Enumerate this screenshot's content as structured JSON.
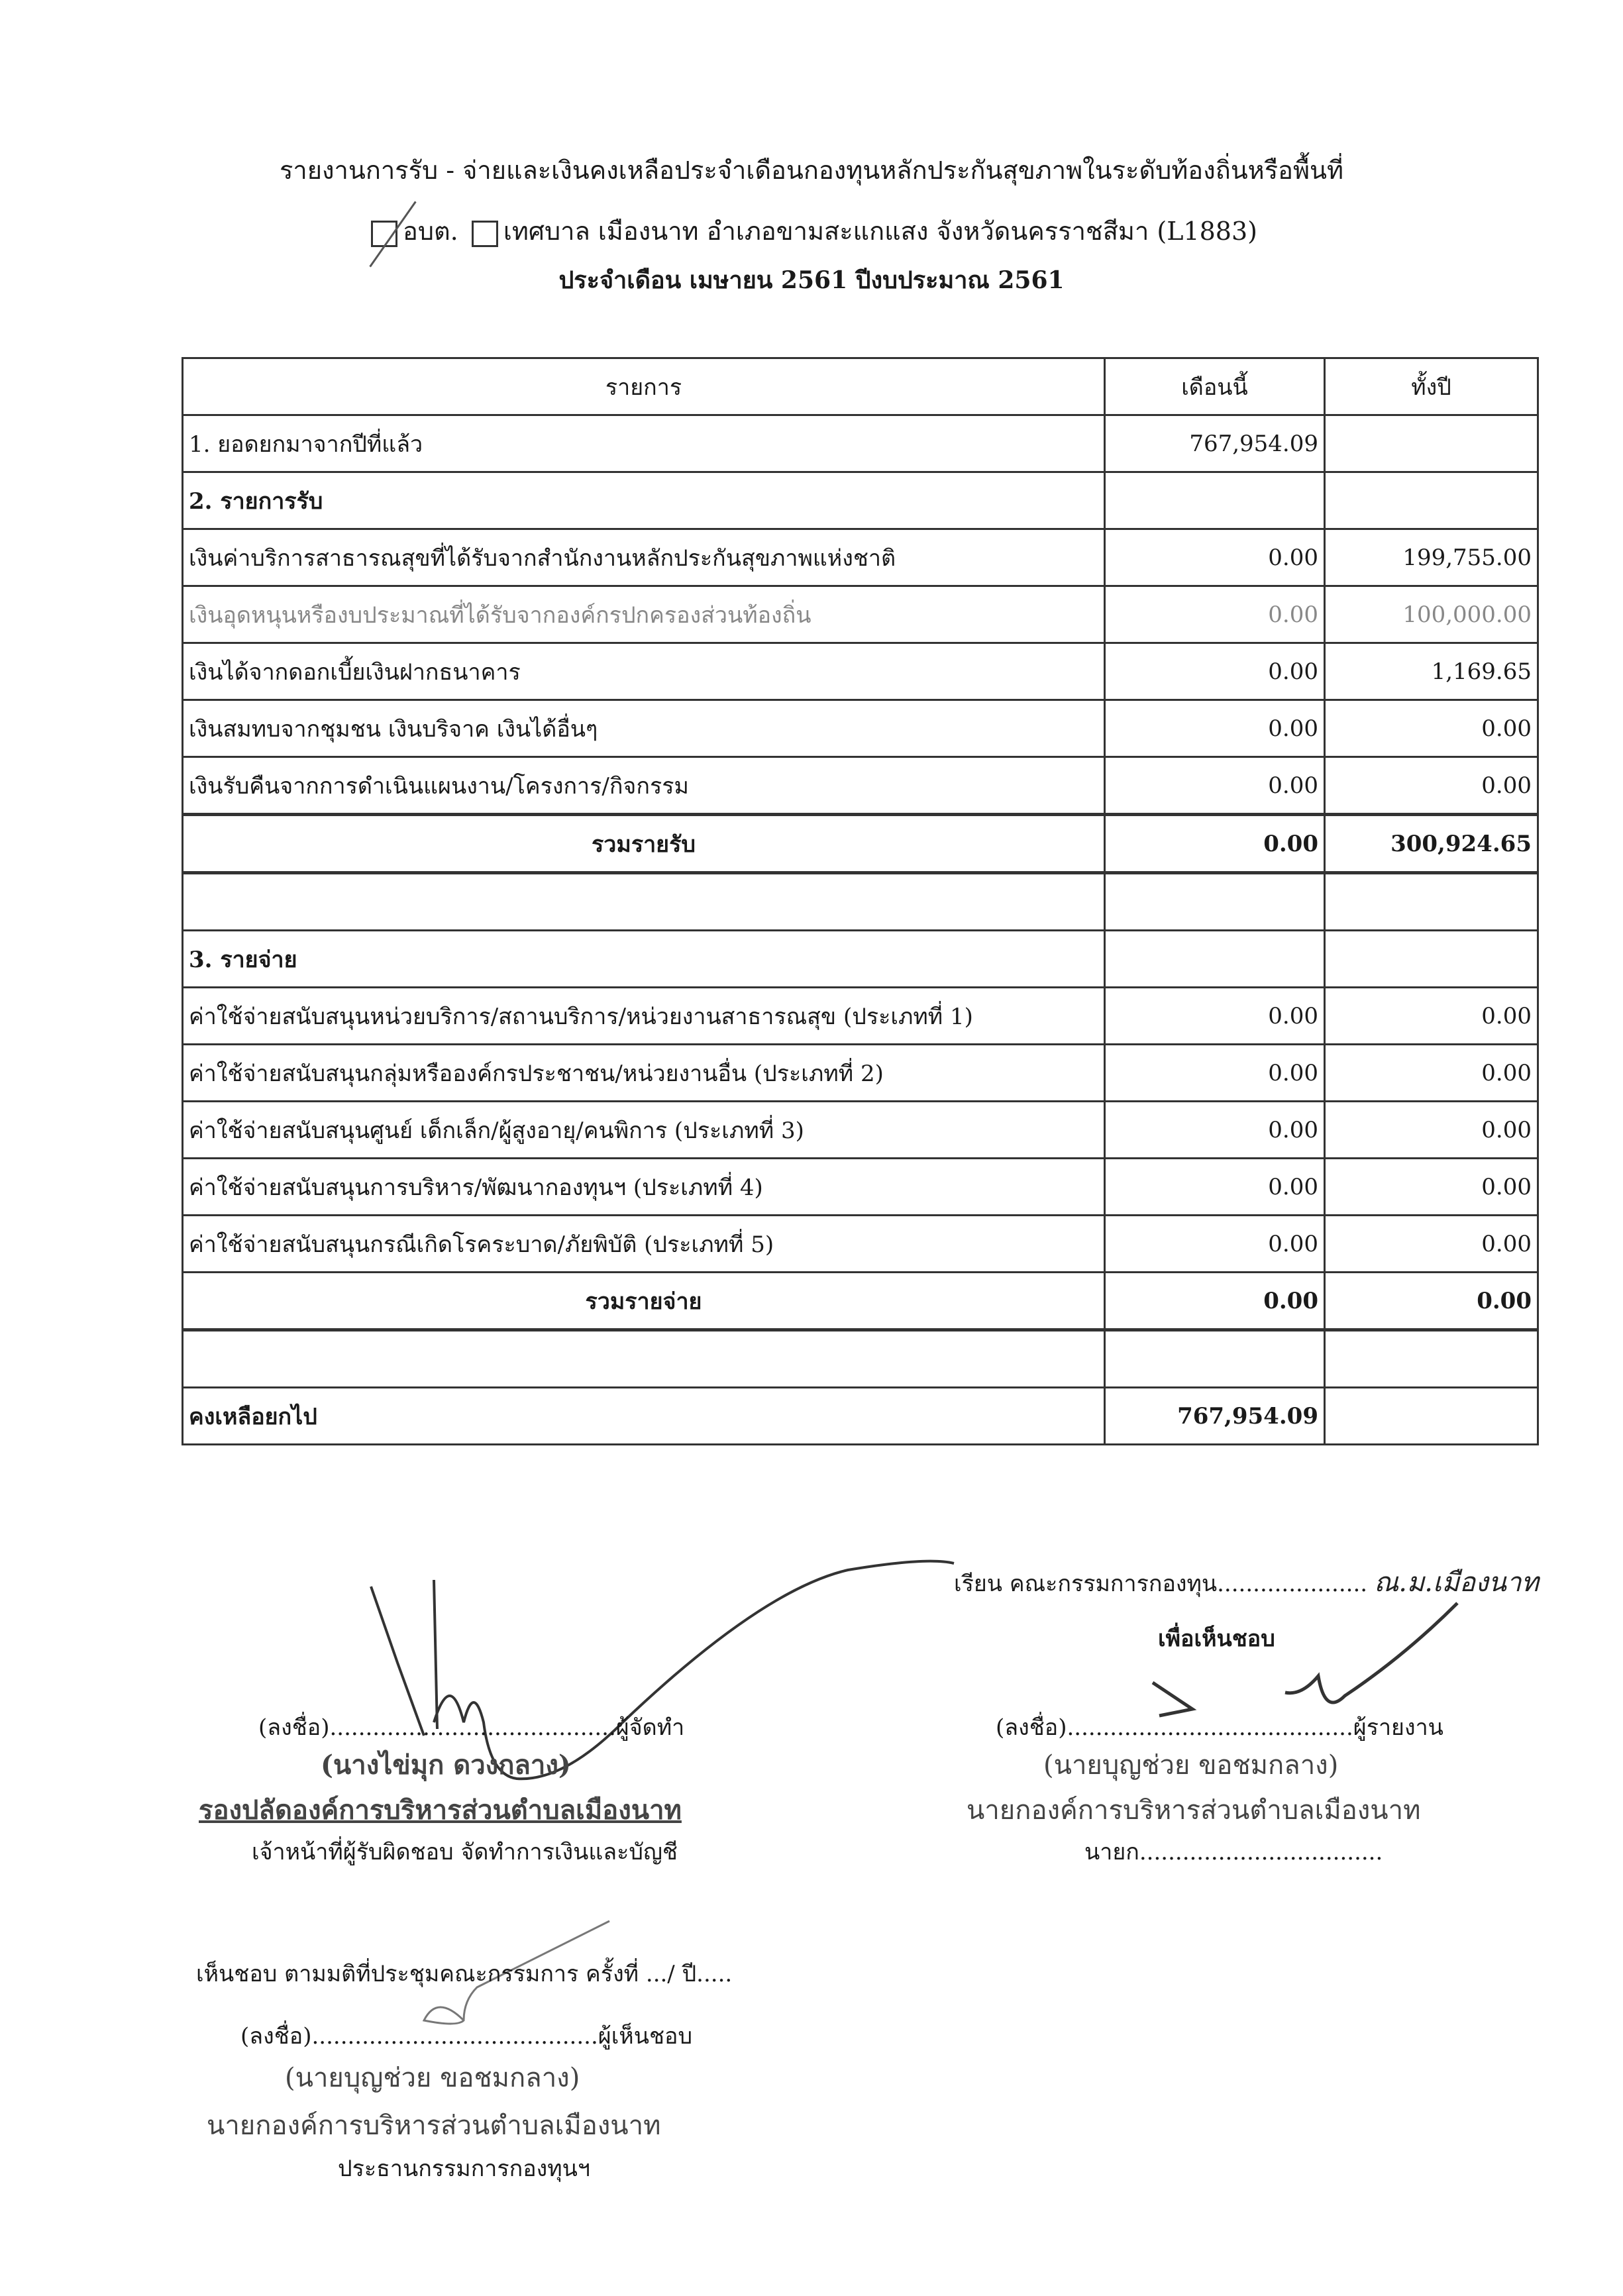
{
  "header": {
    "title": "รายงานการรับ - จ่ายและเงินคงเหลือประจำเดือนกองทุนหลักประกันสุขภาพในระดับท้องถิ่นหรือพื้นที่",
    "option_1": "อบต.",
    "option_1_checked": true,
    "option_2": "เทศบาล เมืองนาท อำเภอขามสะแกแสง จังหวัดนครราชสีมา (L1883)",
    "option_2_checked": false,
    "period": "ประจำเดือน เมษายน 2561 ปีงบประมาณ 2561"
  },
  "table": {
    "columns": [
      "รายการ",
      "เดือนนี้",
      "ทั้งปี"
    ],
    "rows": [
      {
        "label": "1. ยอดยกมาจากปีที่แล้ว",
        "month": "767,954.09",
        "year": "",
        "style": "plain"
      },
      {
        "label": "2. รายการรับ",
        "month": "",
        "year": "",
        "style": "section"
      },
      {
        "label": "เงินค่าบริการสาธารณสุขที่ได้รับจากสำนักงานหลักประกันสุขภาพแห่งชาติ",
        "month": "0.00",
        "year": "199,755.00",
        "style": "plain"
      },
      {
        "label": "เงินอุดหนุนหรืองบประมาณที่ได้รับจากองค์กรปกครองส่วนท้องถิ่น",
        "month": "0.00",
        "year": "100,000.00",
        "style": "faint"
      },
      {
        "label": "เงินได้จากดอกเบี้ยเงินฝากธนาคาร",
        "month": "0.00",
        "year": "1,169.65",
        "style": "plain"
      },
      {
        "label": "เงินสมทบจากชุมชน เงินบริจาค เงินได้อื่นๆ",
        "month": "0.00",
        "year": "0.00",
        "style": "plain"
      },
      {
        "label": "เงินรับคืนจากการดำเนินแผนงาน/โครงการ/กิจกรรม",
        "month": "0.00",
        "year": "0.00",
        "style": "thick"
      },
      {
        "label": "รวมรายรับ",
        "month": "0.00",
        "year": "300,924.65",
        "style": "total"
      },
      {
        "label": "",
        "month": "",
        "year": "",
        "style": "plain"
      },
      {
        "label": "3. รายจ่าย",
        "month": "",
        "year": "",
        "style": "section"
      },
      {
        "label": "ค่าใช้จ่ายสนับสนุนหน่วยบริการ/สถานบริการ/หน่วยงานสาธารณสุข (ประเภทที่ 1)",
        "month": "0.00",
        "year": "0.00",
        "style": "plain"
      },
      {
        "label": "ค่าใช้จ่ายสนับสนุนกลุ่มหรือองค์กรประชาชน/หน่วยงานอื่น (ประเภทที่ 2)",
        "month": "0.00",
        "year": "0.00",
        "style": "plain"
      },
      {
        "label": "ค่าใช้จ่ายสนับสนุนศูนย์ เด็กเล็ก/ผู้สูงอายุ/คนพิการ (ประเภทที่ 3)",
        "month": "0.00",
        "year": "0.00",
        "style": "plain"
      },
      {
        "label": "ค่าใช้จ่ายสนับสนุนการบริหาร/พัฒนากองทุนฯ (ประเภทที่ 4)",
        "month": "0.00",
        "year": "0.00",
        "style": "plain"
      },
      {
        "label": "ค่าใช้จ่ายสนับสนุนกรณีเกิดโรคระบาด/ภัยพิบัติ (ประเภทที่ 5)",
        "month": "0.00",
        "year": "0.00",
        "style": "plain"
      },
      {
        "label": "รวมรายจ่าย",
        "month": "0.00",
        "year": "0.00",
        "style": "total"
      },
      {
        "label": "",
        "month": "",
        "year": "",
        "style": "plain"
      },
      {
        "label": "คงเหลือยกไป",
        "month": "767,954.09",
        "year": "",
        "style": "section"
      }
    ]
  },
  "signatures": {
    "addressee": "เรียน คณะกรรมการกองทุน.....................",
    "addressee_handwritten": "ณ.ม.เมืองนาท",
    "for_approval": "เพื่อเห็นชอบ",
    "preparer": {
      "sign_line": "(ลงชื่อ)........................................ผู้จัดทำ",
      "name": "(นางไข่มุก  ดวงกลาง)",
      "stamp_title": "รองปลัดองค์การบริหารส่วนตำบลเมืองนาท",
      "role": "เจ้าหน้าที่ผู้รับผิดชอบ จัดทำการเงินและบัญชี"
    },
    "reporter": {
      "sign_line": "(ลงชื่อ)........................................ผู้รายงาน",
      "name": "(นายบุญช่วย  ขอชมกลาง)",
      "stamp_title": "นายกองค์การบริหารส่วนตำบลเมืองนาท",
      "role": "นายก.................................."
    },
    "approval_note": "เห็นชอบ ตามมติที่ประชุมคณะกรรมการ ครั้งที่ .../ ปี.....",
    "approver": {
      "sign_line": "(ลงชื่อ)........................................ผู้เห็นชอบ",
      "name": "(นายบุญช่วย  ขอชมกลาง)",
      "stamp_title": "นายกองค์การบริหารส่วนตำบลเมืองนาท",
      "role": "ประธานกรรมการกองทุนฯ"
    }
  }
}
